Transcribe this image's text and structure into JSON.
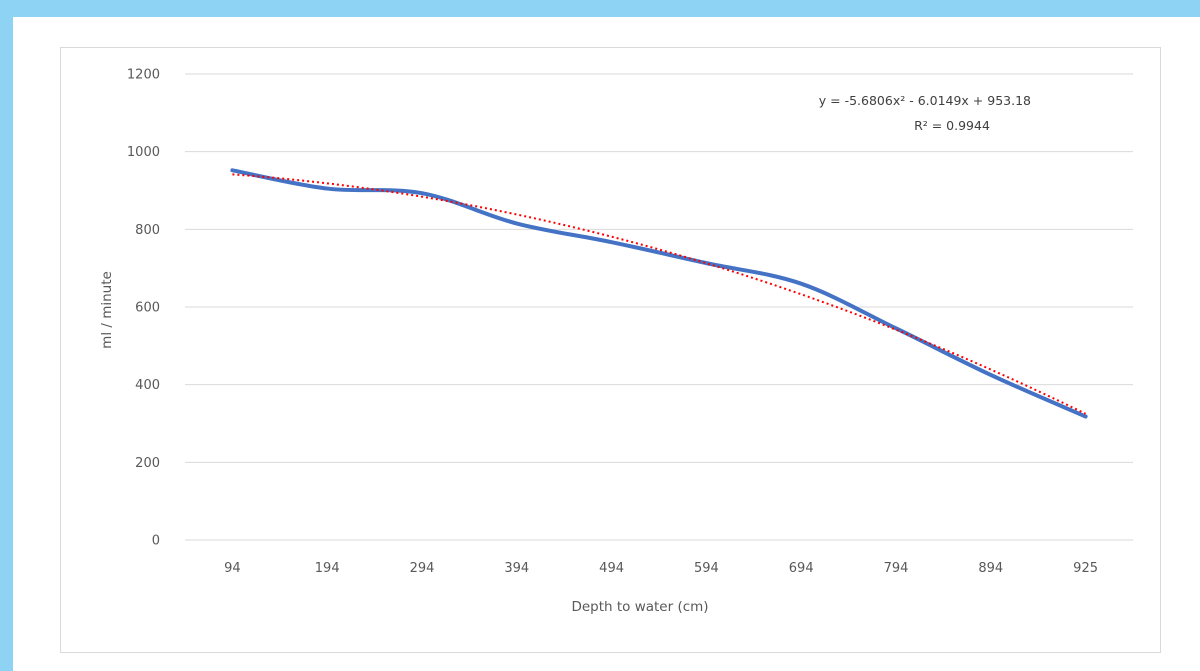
{
  "colors": {
    "frame": "#8fd3f4",
    "series": "#4472c4",
    "trendline": "#ff0000",
    "grid": "#d9d9d9",
    "text": "#595959"
  },
  "chart_data": {
    "type": "line",
    "xlabel": "Depth to water (cm)",
    "ylabel": "ml / minute",
    "categories": [
      "94",
      "194",
      "294",
      "394",
      "494",
      "594",
      "694",
      "794",
      "894",
      "925"
    ],
    "series": [
      {
        "values": [
          952,
          905,
          893,
          815,
          767,
          713,
          660,
          545,
          425,
          318
        ],
        "color": "#4472c4",
        "style": "solid smooth"
      }
    ],
    "trendline": {
      "type": "polynomial order 2",
      "equation": "y = -5.6806x² - 6.0149x + 953.18",
      "r_squared": "R² = 0.9944",
      "coefficients": [
        -5.6806,
        -6.0149,
        953.18
      ],
      "color": "#ff0000",
      "style": "dotted"
    },
    "ylim": [
      0,
      1200
    ],
    "yticks": [
      "0",
      "200",
      "400",
      "600",
      "800",
      "1000",
      "1200"
    ],
    "grid": true,
    "legend": "none"
  }
}
